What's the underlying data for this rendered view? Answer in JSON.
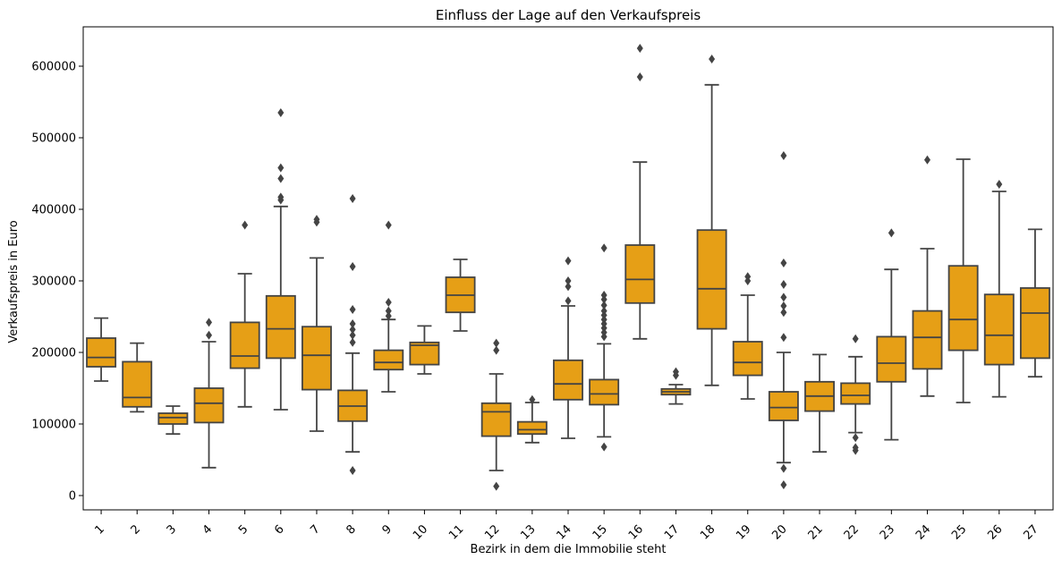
{
  "chart_data": {
    "type": "box",
    "title": "Einfluss der Lage auf den Verkaufspreis",
    "xlabel": "Bezirk in dem die Immobilie steht",
    "ylabel": "Verkaufspreis in Euro",
    "ylim": [
      -20000,
      655000
    ],
    "yticks": [
      0,
      100000,
      200000,
      300000,
      400000,
      500000,
      600000
    ],
    "ytick_labels": [
      "0",
      "100000",
      "200000",
      "300000",
      "400000",
      "500000",
      "600000"
    ],
    "grid": false,
    "legend": "none",
    "box_color": "#E69F16",
    "line_color": "#444444",
    "categories": [
      "1",
      "2",
      "3",
      "4",
      "5",
      "6",
      "7",
      "8",
      "9",
      "10",
      "11",
      "12",
      "13",
      "14",
      "15",
      "16",
      "17",
      "18",
      "19",
      "20",
      "21",
      "22",
      "23",
      "24",
      "25",
      "26",
      "27"
    ],
    "boxes": [
      {
        "category": "1",
        "whisker_low": 160000,
        "q1": 180000,
        "median": 193000,
        "q3": 220000,
        "whisker_high": 248000,
        "outliers": []
      },
      {
        "category": "2",
        "whisker_low": 117000,
        "q1": 124000,
        "median": 137000,
        "q3": 187000,
        "whisker_high": 213000,
        "outliers": []
      },
      {
        "category": "3",
        "whisker_low": 86000,
        "q1": 100000,
        "median": 109000,
        "q3": 115000,
        "whisker_high": 125000,
        "outliers": []
      },
      {
        "category": "4",
        "whisker_low": 39000,
        "q1": 102000,
        "median": 129000,
        "q3": 150000,
        "whisker_high": 215000,
        "outliers": [
          224000,
          242000
        ]
      },
      {
        "category": "5",
        "whisker_low": 124000,
        "q1": 178000,
        "median": 195000,
        "q3": 242000,
        "whisker_high": 310000,
        "outliers": [
          378000
        ]
      },
      {
        "category": "6",
        "whisker_low": 120000,
        "q1": 192000,
        "median": 233000,
        "q3": 279000,
        "whisker_high": 404000,
        "outliers": [
          413000,
          417000,
          443000,
          458000,
          535000
        ]
      },
      {
        "category": "7",
        "whisker_low": 90000,
        "q1": 148000,
        "median": 196000,
        "q3": 236000,
        "whisker_high": 332000,
        "outliers": [
          382000,
          386000
        ]
      },
      {
        "category": "8",
        "whisker_low": 61000,
        "q1": 104000,
        "median": 125000,
        "q3": 147000,
        "whisker_high": 199000,
        "outliers": [
          35000,
          214000,
          224000,
          232000,
          240000,
          260000,
          320000,
          415000
        ]
      },
      {
        "category": "9",
        "whisker_low": 145000,
        "q1": 176000,
        "median": 186000,
        "q3": 203000,
        "whisker_high": 246000,
        "outliers": [
          251000,
          258000,
          270000,
          378000
        ]
      },
      {
        "category": "10",
        "whisker_low": 170000,
        "q1": 183000,
        "median": 210000,
        "q3": 214000,
        "whisker_high": 237000,
        "outliers": []
      },
      {
        "category": "11",
        "whisker_low": 230000,
        "q1": 256000,
        "median": 280000,
        "q3": 305000,
        "whisker_high": 330000,
        "outliers": []
      },
      {
        "category": "12",
        "whisker_low": 35000,
        "q1": 83000,
        "median": 117000,
        "q3": 129000,
        "whisker_high": 170000,
        "outliers": [
          13000,
          203000,
          213000
        ]
      },
      {
        "category": "13",
        "whisker_low": 74000,
        "q1": 86000,
        "median": 92000,
        "q3": 103000,
        "whisker_high": 130000,
        "outliers": [
          134000
        ]
      },
      {
        "category": "14",
        "whisker_low": 80000,
        "q1": 134000,
        "median": 156000,
        "q3": 189000,
        "whisker_high": 265000,
        "outliers": [
          272000,
          292000,
          300000,
          328000
        ]
      },
      {
        "category": "15",
        "whisker_low": 82000,
        "q1": 127000,
        "median": 142000,
        "q3": 162000,
        "whisker_high": 212000,
        "outliers": [
          68000,
          222000,
          228000,
          234000,
          240000,
          246000,
          252000,
          258000,
          266000,
          274000,
          280000,
          346000
        ]
      },
      {
        "category": "16",
        "whisker_low": 219000,
        "q1": 269000,
        "median": 302000,
        "q3": 350000,
        "whisker_high": 466000,
        "outliers": [
          585000,
          625000
        ]
      },
      {
        "category": "17",
        "whisker_low": 128000,
        "q1": 141000,
        "median": 145000,
        "q3": 149000,
        "whisker_high": 155000,
        "outliers": [
          168000,
          173000
        ]
      },
      {
        "category": "18",
        "whisker_low": 154000,
        "q1": 233000,
        "median": 289000,
        "q3": 371000,
        "whisker_high": 574000,
        "outliers": [
          610000
        ]
      },
      {
        "category": "19",
        "whisker_low": 135000,
        "q1": 168000,
        "median": 186000,
        "q3": 215000,
        "whisker_high": 280000,
        "outliers": [
          300000,
          306000
        ]
      },
      {
        "category": "20",
        "whisker_low": 46000,
        "q1": 105000,
        "median": 123000,
        "q3": 145000,
        "whisker_high": 200000,
        "outliers": [
          15000,
          38000,
          221000,
          256000,
          265000,
          277000,
          295000,
          325000,
          475000
        ]
      },
      {
        "category": "21",
        "whisker_low": 61000,
        "q1": 118000,
        "median": 139000,
        "q3": 159000,
        "whisker_high": 197000,
        "outliers": []
      },
      {
        "category": "22",
        "whisker_low": 88000,
        "q1": 128000,
        "median": 140000,
        "q3": 157000,
        "whisker_high": 194000,
        "outliers": [
          63000,
          67000,
          81000,
          219000
        ]
      },
      {
        "category": "23",
        "whisker_low": 78000,
        "q1": 159000,
        "median": 185000,
        "q3": 222000,
        "whisker_high": 316000,
        "outliers": [
          367000
        ]
      },
      {
        "category": "24",
        "whisker_low": 139000,
        "q1": 177000,
        "median": 221000,
        "q3": 258000,
        "whisker_high": 345000,
        "outliers": [
          469000
        ]
      },
      {
        "category": "25",
        "whisker_low": 130000,
        "q1": 203000,
        "median": 246000,
        "q3": 321000,
        "whisker_high": 470000,
        "outliers": []
      },
      {
        "category": "26",
        "whisker_low": 138000,
        "q1": 183000,
        "median": 224000,
        "q3": 281000,
        "whisker_high": 425000,
        "outliers": [
          435000
        ]
      },
      {
        "category": "27",
        "whisker_low": 166000,
        "q1": 192000,
        "median": 255000,
        "q3": 290000,
        "whisker_high": 372000,
        "outliers": []
      }
    ]
  }
}
